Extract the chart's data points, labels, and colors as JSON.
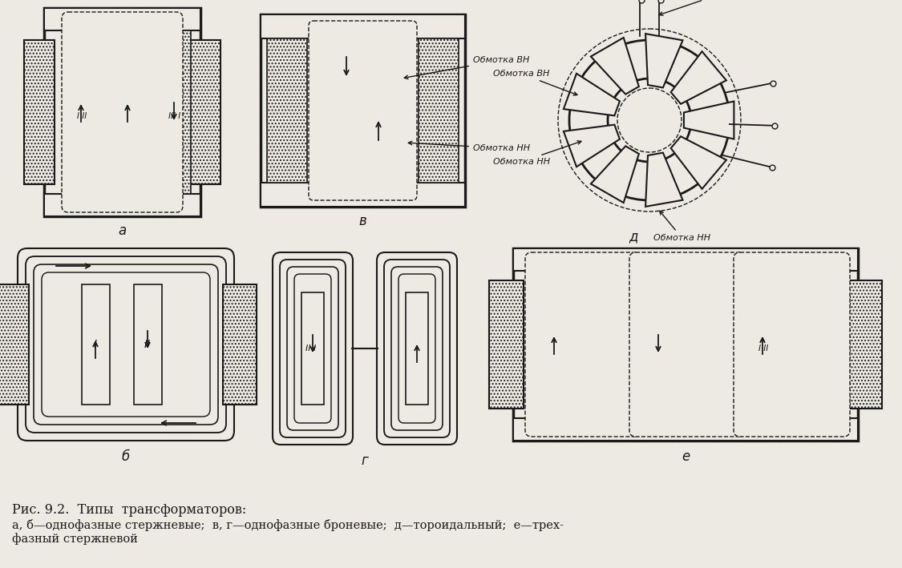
{
  "bg_color": "#ede9e3",
  "line_color": "#1a1a1a",
  "caption_title": "Рис. 9.2.  Типы  трансформаторов:",
  "caption_body": "а, б—однофазные стержневые;  в, г—однофазные броневые;  д—тороидальный;  е—трех-\nфазный стержневой",
  "label_a": "а",
  "label_b": "б",
  "label_v": "в",
  "label_g": "г",
  "label_d": "д",
  "label_e": "е",
  "label_obmVN_top": "Обмотка ВН",
  "label_obmVN_side": "Обмотка ВН",
  "label_obmNN_side": "Обмотка НН",
  "label_obmNN_bot": "Обмотка НН"
}
